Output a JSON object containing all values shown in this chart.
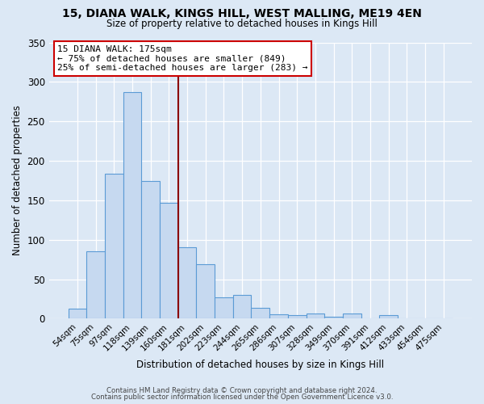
{
  "title1": "15, DIANA WALK, KINGS HILL, WEST MALLING, ME19 4EN",
  "title2": "Size of property relative to detached houses in Kings Hill",
  "xlabel": "Distribution of detached houses by size in Kings Hill",
  "ylabel": "Number of detached properties",
  "bar_color": "#c6d9f0",
  "bar_edge_color": "#5b9bd5",
  "categories": [
    "54sqm",
    "75sqm",
    "97sqm",
    "118sqm",
    "139sqm",
    "160sqm",
    "181sqm",
    "202sqm",
    "223sqm",
    "244sqm",
    "265sqm",
    "286sqm",
    "307sqm",
    "328sqm",
    "349sqm",
    "370sqm",
    "391sqm",
    "412sqm",
    "433sqm",
    "454sqm",
    "475sqm"
  ],
  "values": [
    13,
    85,
    184,
    287,
    174,
    147,
    91,
    69,
    27,
    30,
    14,
    6,
    5,
    7,
    2,
    7,
    0,
    5,
    0,
    0,
    0
  ],
  "ylim": [
    0,
    350
  ],
  "yticks": [
    0,
    50,
    100,
    150,
    200,
    250,
    300,
    350
  ],
  "vline_color": "#8b0000",
  "vline_pos": 6.0,
  "annotation_text": "15 DIANA WALK: 175sqm\n← 75% of detached houses are smaller (849)\n25% of semi-detached houses are larger (283) →",
  "annotation_box_color": "#ffffff",
  "annotation_box_edge": "#cc0000",
  "footer1": "Contains HM Land Registry data © Crown copyright and database right 2024.",
  "footer2": "Contains public sector information licensed under the Open Government Licence v3.0.",
  "background_color": "#dce8f5"
}
